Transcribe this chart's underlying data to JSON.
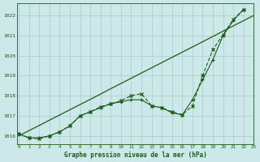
{
  "title": "Graphe pression niveau de la mer (hPa)",
  "bg_color": "#cce8e8",
  "grid_color": "#b0cece",
  "line_color": "#1a5c1a",
  "x_min": 0,
  "x_max": 23,
  "y_min": 1015.6,
  "y_max": 1022.6,
  "y_ticks": [
    1016,
    1017,
    1018,
    1019,
    1020,
    1021,
    1022
  ],
  "x_ticks": [
    0,
    1,
    2,
    3,
    4,
    5,
    6,
    7,
    8,
    9,
    10,
    11,
    12,
    13,
    14,
    15,
    16,
    17,
    18,
    19,
    20,
    21,
    22,
    23
  ],
  "series_straight": [
    1016.0,
    1016.26,
    1016.52,
    1016.78,
    1017.04,
    1017.3,
    1017.56,
    1017.82,
    1018.08,
    1018.35,
    1018.61,
    1018.87,
    1019.13,
    1019.39,
    1019.65,
    1019.91,
    1020.17,
    1020.43,
    1020.69,
    1020.95,
    1021.22,
    1021.48,
    1021.74,
    1022.0
  ],
  "series_plus": [
    1016.1,
    1015.9,
    1015.9,
    1016.0,
    1016.2,
    1016.5,
    1017.0,
    1017.2,
    1017.4,
    1017.6,
    1017.7,
    1017.8,
    1017.8,
    1017.5,
    1017.4,
    1017.15,
    1017.05,
    1017.8,
    1018.8,
    1019.8,
    1021.0,
    1021.75,
    1022.3
  ],
  "series_x": [
    1016.1,
    1015.9,
    1015.85,
    1016.0,
    1016.2,
    1016.5,
    1017.0,
    1017.2,
    1017.45,
    1017.6,
    1017.75,
    1018.0,
    1018.1,
    1017.5,
    1017.4,
    1017.2,
    1017.05,
    1017.5,
    1019.0,
    1020.3,
    1021.05,
    1021.8,
    1022.3
  ]
}
